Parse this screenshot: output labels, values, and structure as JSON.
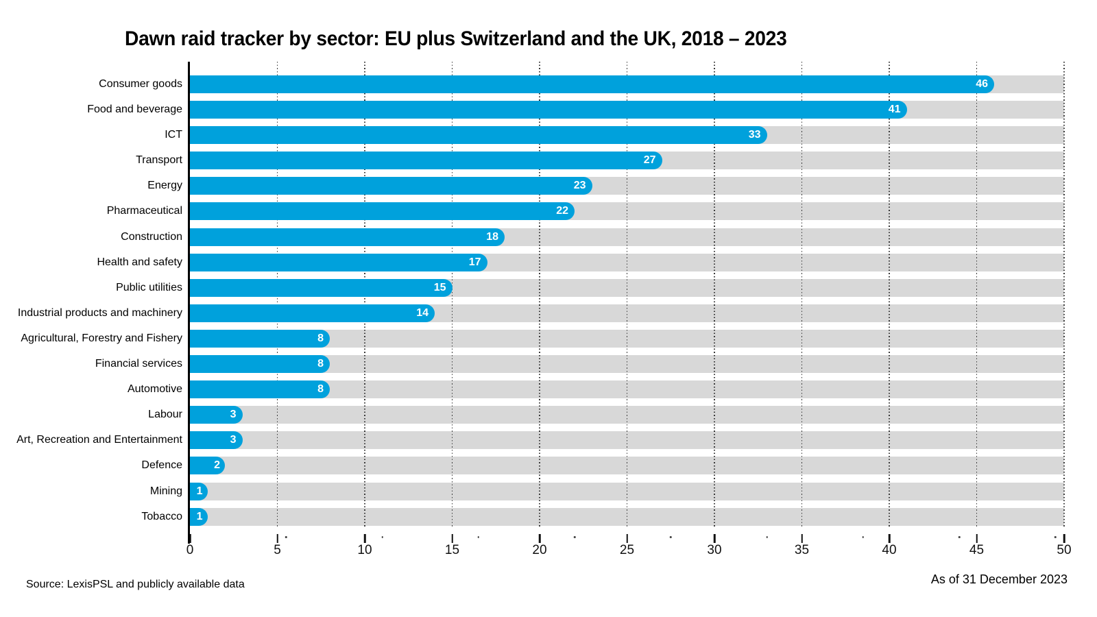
{
  "title": "Dawn raid tracker by sector: EU plus Switzerland and the UK, 2018 – 2023",
  "footer": {
    "source": "Source: LexisPSL and publicly available data",
    "as_of": "As of 31 December 2023"
  },
  "colors": {
    "bar_fill": "#00a1dc",
    "bar_track": "#d8d8d8",
    "value_label": "#ffffff",
    "axis": "#000000"
  },
  "chart_data": {
    "type": "bar",
    "orientation": "horizontal",
    "title": "Dawn raid tracker by sector: EU plus Switzerland and the UK, 2018 – 2023",
    "categories": [
      "Consumer goods",
      "Food and beverage",
      "ICT",
      "Transport",
      "Energy",
      "Pharmaceutical",
      "Construction",
      "Health and safety",
      "Public utilities",
      "Industrial products and machinery",
      "Agricultural, Forestry and Fishery",
      "Financial services",
      "Automotive",
      "Labour",
      "Art, Recreation and Entertainment",
      "Defence",
      "Mining",
      "Tobacco"
    ],
    "values": [
      46,
      41,
      33,
      27,
      23,
      22,
      18,
      17,
      15,
      14,
      8,
      8,
      8,
      3,
      3,
      2,
      1,
      1
    ],
    "xlabel": "",
    "ylabel": "",
    "xlim": [
      0,
      50
    ],
    "x_major_ticks": [
      0,
      5,
      10,
      15,
      20,
      25,
      30,
      35,
      40,
      45,
      50
    ],
    "x_minor_dots": [
      5.5,
      11,
      16.5,
      22,
      27.5,
      33,
      38.5,
      44,
      49.5
    ],
    "grid": "vertical dotted lines at major ticks",
    "legend": "none",
    "value_labels": "white, inside bar ends"
  }
}
